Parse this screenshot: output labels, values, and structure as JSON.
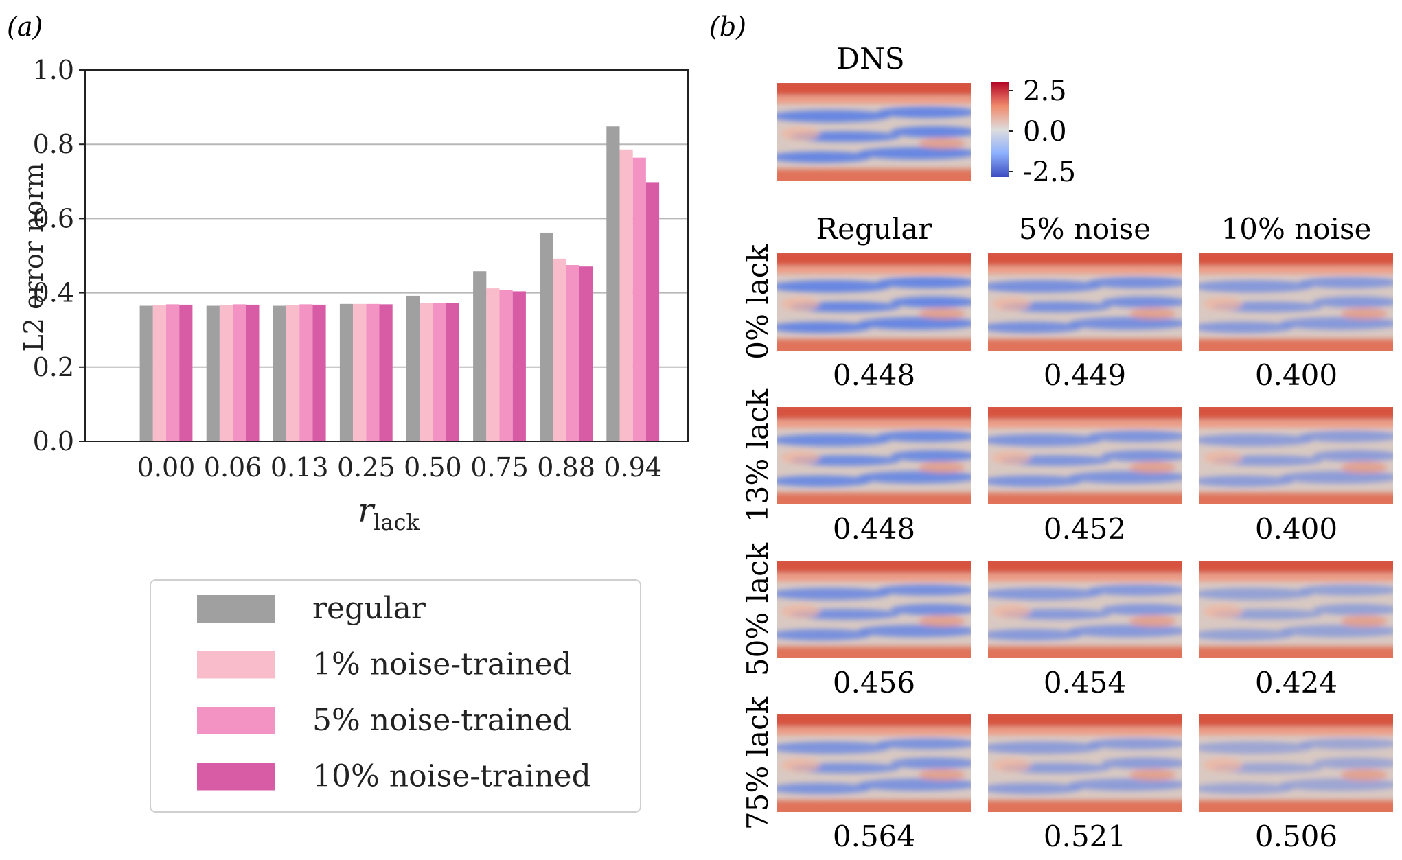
{
  "panel_a": {
    "label": "(a)",
    "legend": [
      {
        "label": "regular",
        "color": "#a0a0a0"
      },
      {
        "label": "1% noise-trained",
        "color": "#f9bccb"
      },
      {
        "label": "5% noise-trained",
        "color": "#f293c4"
      },
      {
        "label": "10% noise-trained",
        "color": "#d85ba6"
      }
    ]
  },
  "panel_b": {
    "label": "(b)",
    "dns_title": "DNS",
    "colorbar_ticks": [
      "2.5",
      "0.0",
      "-2.5"
    ],
    "columns": [
      "Regular",
      "5% noise",
      "10% noise"
    ],
    "rows": [
      {
        "label": "0% lack",
        "errors": [
          "0.448",
          "0.449",
          "0.400"
        ]
      },
      {
        "label": "13% lack",
        "errors": [
          "0.448",
          "0.452",
          "0.400"
        ]
      },
      {
        "label": "50% lack",
        "errors": [
          "0.456",
          "0.454",
          "0.424"
        ]
      },
      {
        "label": "75% lack",
        "errors": [
          "0.564",
          "0.521",
          "0.506"
        ]
      }
    ]
  },
  "chart_data": {
    "type": "bar",
    "title": "",
    "xlabel": "r_lack",
    "ylabel": "L2 error norm",
    "ylim": [
      0,
      1.0
    ],
    "yticks": [
      "0.0",
      "0.2",
      "0.4",
      "0.6",
      "0.8",
      "1.0"
    ],
    "grid": true,
    "categories": [
      "0.00",
      "0.06",
      "0.13",
      "0.25",
      "0.50",
      "0.75",
      "0.88",
      "0.94"
    ],
    "series": [
      {
        "name": "regular",
        "values": [
          0.365,
          0.365,
          0.365,
          0.37,
          0.392,
          0.458,
          0.562,
          0.848
        ]
      },
      {
        "name": "1% noise-trained",
        "values": [
          0.367,
          0.367,
          0.367,
          0.37,
          0.373,
          0.412,
          0.492,
          0.786
        ]
      },
      {
        "name": "5% noise-trained",
        "values": [
          0.369,
          0.369,
          0.369,
          0.37,
          0.373,
          0.408,
          0.475,
          0.764
        ]
      },
      {
        "name": "10% noise-trained",
        "values": [
          0.368,
          0.368,
          0.368,
          0.369,
          0.372,
          0.404,
          0.471,
          0.698
        ]
      }
    ]
  }
}
